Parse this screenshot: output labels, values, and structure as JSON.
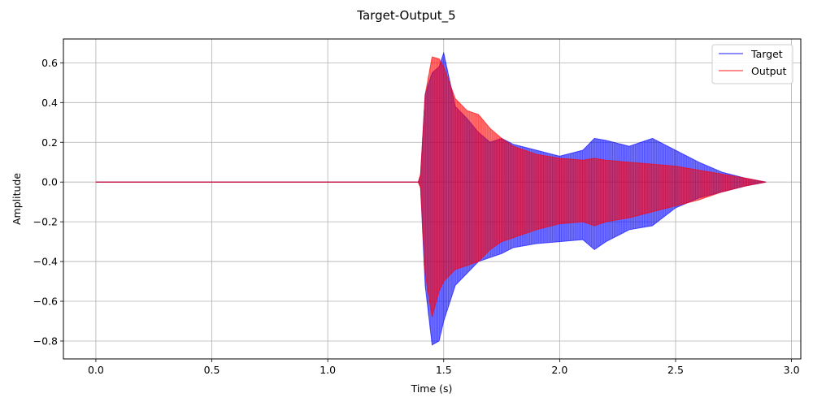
{
  "chart_data": {
    "type": "line",
    "title": "Target-Output_5",
    "xlabel": "Time (s)",
    "ylabel": "Amplitude",
    "xlim": [
      -0.14,
      3.04
    ],
    "ylim": [
      -0.89,
      0.72
    ],
    "xticks": [
      0.0,
      0.5,
      1.0,
      1.5,
      2.0,
      2.5,
      3.0
    ],
    "xtick_labels": [
      "0.0",
      "0.5",
      "1.0",
      "1.5",
      "2.0",
      "2.5",
      "3.0"
    ],
    "yticks": [
      -0.8,
      -0.6,
      -0.4,
      -0.2,
      0.0,
      0.2,
      0.4,
      0.6
    ],
    "ytick_labels": [
      "−0.8",
      "−0.6",
      "−0.4",
      "−0.2",
      "0.0",
      "0.2",
      "0.4",
      "0.6"
    ],
    "grid": true,
    "legend_position": "top-right",
    "series": [
      {
        "name": "Target",
        "color": "#0000ff",
        "opacity": 0.6,
        "x": [
          0.0,
          1.39,
          1.4,
          1.42,
          1.45,
          1.48,
          1.5,
          1.55,
          1.6,
          1.65,
          1.7,
          1.75,
          1.8,
          1.9,
          2.0,
          2.1,
          2.15,
          2.2,
          2.3,
          2.4,
          2.5,
          2.6,
          2.7,
          2.8,
          2.89
        ],
        "upper": [
          0.0,
          0.0,
          0.03,
          0.44,
          0.55,
          0.58,
          0.65,
          0.38,
          0.32,
          0.25,
          0.2,
          0.22,
          0.19,
          0.16,
          0.13,
          0.16,
          0.22,
          0.21,
          0.18,
          0.22,
          0.16,
          0.1,
          0.05,
          0.02,
          0.0
        ],
        "lower": [
          0.0,
          0.0,
          -0.02,
          -0.52,
          -0.82,
          -0.8,
          -0.7,
          -0.52,
          -0.46,
          -0.4,
          -0.38,
          -0.36,
          -0.33,
          -0.31,
          -0.3,
          -0.29,
          -0.34,
          -0.3,
          -0.24,
          -0.22,
          -0.13,
          -0.08,
          -0.05,
          -0.02,
          0.0
        ]
      },
      {
        "name": "Output",
        "color": "#ff0000",
        "opacity": 0.6,
        "x": [
          0.0,
          1.39,
          1.4,
          1.42,
          1.45,
          1.48,
          1.5,
          1.55,
          1.6,
          1.65,
          1.7,
          1.75,
          1.8,
          1.9,
          2.0,
          2.1,
          2.15,
          2.2,
          2.3,
          2.4,
          2.5,
          2.6,
          2.7,
          2.8,
          2.89
        ],
        "upper": [
          0.0,
          0.0,
          0.04,
          0.44,
          0.63,
          0.62,
          0.58,
          0.42,
          0.36,
          0.34,
          0.27,
          0.22,
          0.18,
          0.14,
          0.12,
          0.11,
          0.12,
          0.11,
          0.1,
          0.09,
          0.08,
          0.06,
          0.04,
          0.02,
          0.0
        ],
        "lower": [
          0.0,
          0.0,
          -0.03,
          -0.46,
          -0.68,
          -0.55,
          -0.5,
          -0.44,
          -0.42,
          -0.4,
          -0.34,
          -0.3,
          -0.28,
          -0.24,
          -0.21,
          -0.2,
          -0.22,
          -0.2,
          -0.18,
          -0.15,
          -0.12,
          -0.09,
          -0.05,
          -0.02,
          0.0
        ]
      }
    ]
  }
}
